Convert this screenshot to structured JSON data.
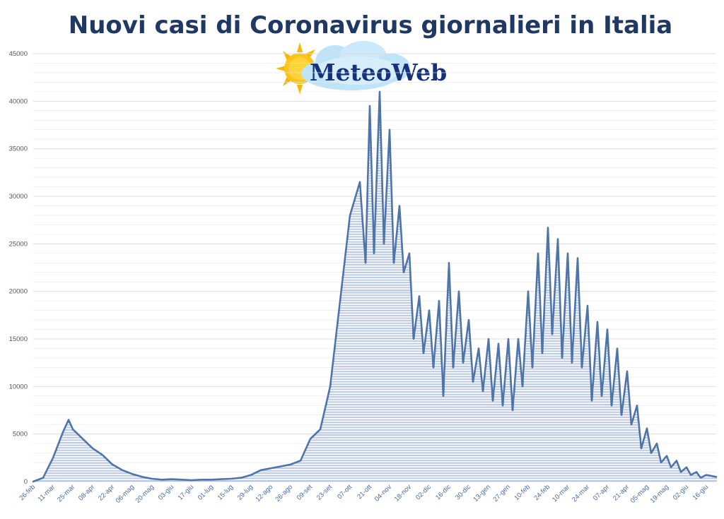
{
  "logo": {
    "text": "MeteoWeb",
    "icon": "sun-cloud-icon"
  },
  "colors": {
    "title": "#1f3864",
    "line": "#4f74aa",
    "hatch": "#6a8cc0",
    "grid": "#e6e6e6"
  },
  "chart_data": {
    "type": "area",
    "title": "Nuovi casi di Coronavirus giornalieri in Italia",
    "xlabel": "",
    "ylabel": "",
    "ylim": [
      0,
      45000
    ],
    "yticks": [
      0,
      5000,
      10000,
      15000,
      20000,
      25000,
      30000,
      35000,
      40000,
      45000
    ],
    "grid": true,
    "x_tick_labels": [
      "26-feb",
      "11-mar",
      "25-mar",
      "08-apr",
      "22-apr",
      "06-mag",
      "20-mag",
      "03-giu",
      "17-giu",
      "01-lug",
      "15-lug",
      "29-lug",
      "12-ago",
      "26-ago",
      "09-set",
      "23-set",
      "07-ott",
      "21-ott",
      "04-nov",
      "18-nov",
      "02-dic",
      "16-dic",
      "30-dic",
      "13-gen",
      "27-gen",
      "10-feb",
      "24-feb",
      "10-mar",
      "24-mar",
      "07-apr",
      "21-apr",
      "05-mag",
      "19-mag",
      "02-giu",
      "16-giu"
    ],
    "series": [
      {
        "name": "",
        "x": [
          0,
          7,
          14,
          21,
          25,
          28,
          35,
          42,
          49,
          56,
          63,
          70,
          77,
          84,
          91,
          98,
          105,
          112,
          119,
          126,
          133,
          140,
          147,
          154,
          161,
          168,
          175,
          182,
          189,
          196,
          203,
          210,
          217,
          224,
          231,
          235,
          238,
          241,
          245,
          248,
          252,
          255,
          259,
          262,
          266,
          269,
          273,
          276,
          280,
          283,
          287,
          290,
          294,
          297,
          301,
          304,
          308,
          311,
          315,
          318,
          322,
          325,
          329,
          332,
          336,
          339,
          343,
          346,
          350,
          353,
          357,
          360,
          364,
          367,
          371,
          374,
          378,
          381,
          385,
          388,
          392,
          395,
          399,
          402,
          406,
          409,
          413,
          416,
          420,
          423,
          427,
          430,
          434,
          437,
          441,
          444,
          448,
          451,
          455,
          458,
          462,
          465,
          469,
          472,
          476,
          483
        ],
        "y": [
          0,
          400,
          2500,
          5200,
          6500,
          5500,
          4500,
          3500,
          2800,
          1800,
          1200,
          800,
          500,
          300,
          200,
          250,
          200,
          150,
          200,
          200,
          250,
          300,
          400,
          700,
          1200,
          1400,
          1600,
          1800,
          2200,
          4500,
          5500,
          10000,
          19000,
          28000,
          31500,
          23000,
          39500,
          24000,
          41000,
          25000,
          37000,
          23000,
          29000,
          22000,
          24000,
          15000,
          19500,
          13500,
          18000,
          12000,
          19000,
          9000,
          23000,
          12000,
          20000,
          12500,
          17000,
          10500,
          14000,
          9500,
          15000,
          8500,
          14500,
          8000,
          15000,
          7500,
          15000,
          10000,
          20000,
          12000,
          24000,
          13500,
          26700,
          15500,
          25500,
          13000,
          24000,
          12500,
          23500,
          12000,
          18500,
          8500,
          16800,
          9000,
          16000,
          8000,
          14000,
          7000,
          11600,
          6000,
          8000,
          3500,
          5600,
          3000,
          4000,
          2000,
          2700,
          1500,
          2200,
          1000,
          1500,
          700,
          1000,
          400,
          700,
          500
        ]
      }
    ]
  }
}
